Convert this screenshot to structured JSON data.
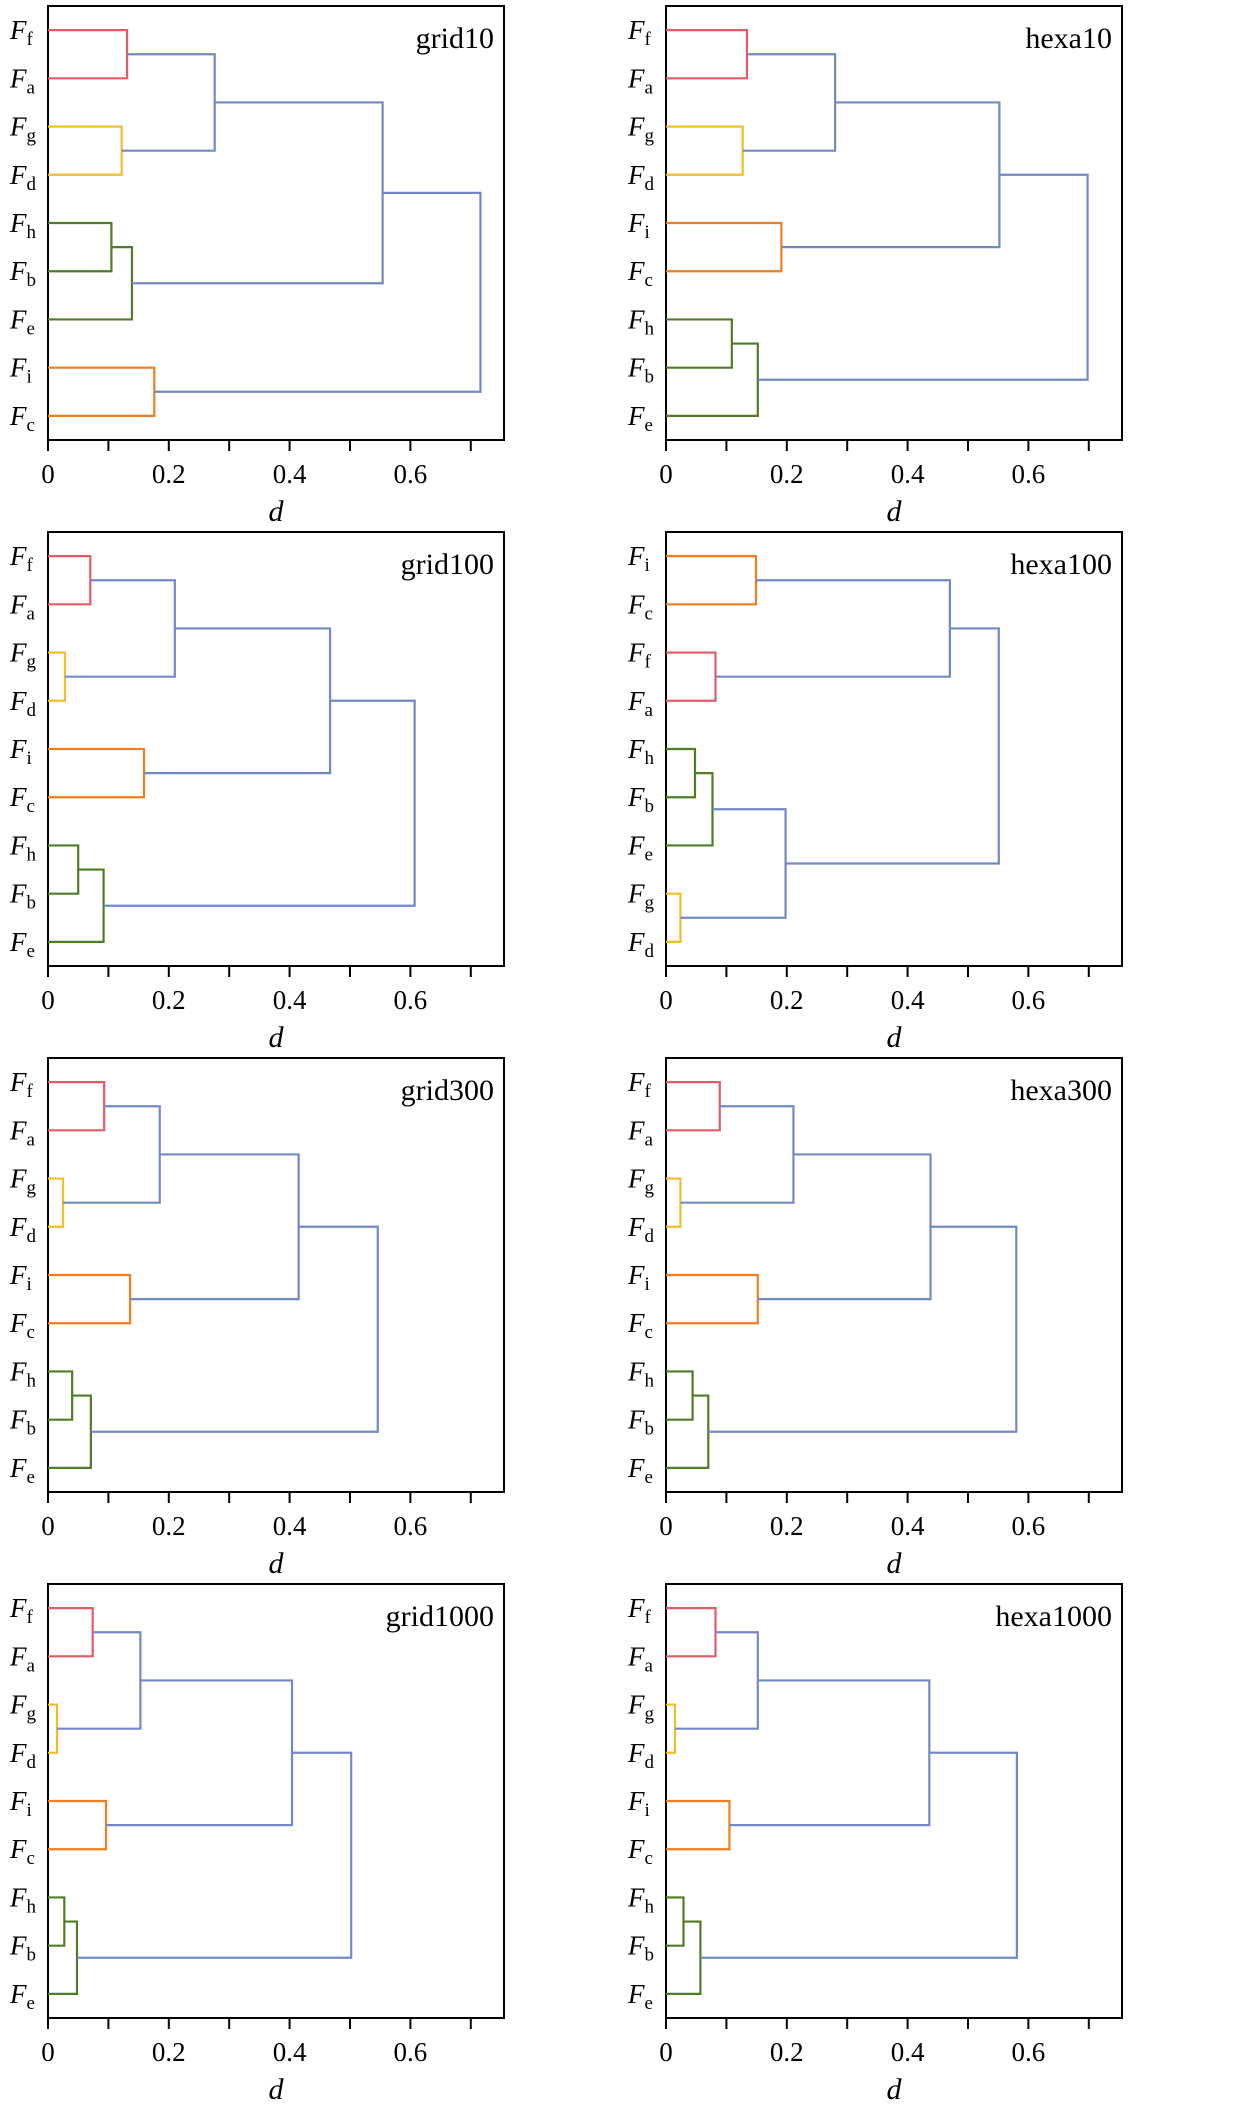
{
  "figure": {
    "description": "Eight agglomerative-clustering dendrograms comparing grid and hexa samplings at 10, 100, 300 and 1000 points",
    "panel_titles": [
      "grid10",
      "hexa10",
      "grid100",
      "hexa100",
      "grid300",
      "hexa300",
      "grid1000",
      "hexa1000"
    ]
  },
  "colors": {
    "red": "#e15c66",
    "yellow": "#f2bc2b",
    "orange": "#ee7e20",
    "green": "#4e7d26",
    "blue": "#7289c4",
    "axis": "#000000"
  },
  "axis": {
    "label": "d",
    "xmin": 0,
    "xmax": 0.755,
    "ticks": [
      {
        "v": 0.0,
        "t": "0"
      },
      {
        "v": 0.1,
        "t": ""
      },
      {
        "v": 0.2,
        "t": "0.2"
      },
      {
        "v": 0.3,
        "t": ""
      },
      {
        "v": 0.4,
        "t": "0.4"
      },
      {
        "v": 0.5,
        "t": ""
      },
      {
        "v": 0.6,
        "t": "0.6"
      },
      {
        "v": 0.7,
        "t": ""
      }
    ]
  },
  "leaf_prefix": "F",
  "chart_data": [
    {
      "type": "dendrogram",
      "title": "grid10",
      "xlabel": "d",
      "leaves": [
        "f",
        "a",
        "g",
        "d",
        "h",
        "b",
        "e",
        "i",
        "c"
      ],
      "merges": [
        {
          "a": "f",
          "b": "a",
          "d": 0.131,
          "color": "red"
        },
        {
          "a": "g",
          "b": "d",
          "d": 0.122,
          "color": "yellow"
        },
        {
          "a": "m0",
          "b": "m1",
          "d": 0.276,
          "color": "blue"
        },
        {
          "a": "h",
          "b": "b",
          "d": 0.105,
          "color": "green"
        },
        {
          "a": "m3",
          "b": "e",
          "d": 0.139,
          "color": "green"
        },
        {
          "a": "m2",
          "b": "m4",
          "d": 0.554,
          "color": "blue"
        },
        {
          "a": "i",
          "b": "c",
          "d": 0.176,
          "color": "orange"
        },
        {
          "a": "m5",
          "b": "m6",
          "d": 0.716,
          "color": "blue"
        }
      ]
    },
    {
      "type": "dendrogram",
      "title": "hexa10",
      "xlabel": "d",
      "leaves": [
        "f",
        "a",
        "g",
        "d",
        "i",
        "c",
        "h",
        "b",
        "e"
      ],
      "merges": [
        {
          "a": "f",
          "b": "a",
          "d": 0.134,
          "color": "red"
        },
        {
          "a": "g",
          "b": "d",
          "d": 0.127,
          "color": "yellow"
        },
        {
          "a": "m0",
          "b": "m1",
          "d": 0.28,
          "color": "blue"
        },
        {
          "a": "i",
          "b": "c",
          "d": 0.191,
          "color": "orange"
        },
        {
          "a": "m2",
          "b": "m3",
          "d": 0.552,
          "color": "blue"
        },
        {
          "a": "h",
          "b": "b",
          "d": 0.109,
          "color": "green"
        },
        {
          "a": "m5",
          "b": "e",
          "d": 0.152,
          "color": "green"
        },
        {
          "a": "m4",
          "b": "m6",
          "d": 0.698,
          "color": "blue"
        }
      ]
    },
    {
      "type": "dendrogram",
      "title": "grid100",
      "xlabel": "d",
      "leaves": [
        "f",
        "a",
        "g",
        "d",
        "i",
        "c",
        "h",
        "b",
        "e"
      ],
      "merges": [
        {
          "a": "f",
          "b": "a",
          "d": 0.07,
          "color": "red"
        },
        {
          "a": "g",
          "b": "d",
          "d": 0.028,
          "color": "yellow"
        },
        {
          "a": "m0",
          "b": "m1",
          "d": 0.21,
          "color": "blue"
        },
        {
          "a": "i",
          "b": "c",
          "d": 0.159,
          "color": "orange"
        },
        {
          "a": "m2",
          "b": "m3",
          "d": 0.467,
          "color": "blue"
        },
        {
          "a": "h",
          "b": "b",
          "d": 0.05,
          "color": "green"
        },
        {
          "a": "m5",
          "b": "e",
          "d": 0.092,
          "color": "green"
        },
        {
          "a": "m4",
          "b": "m6",
          "d": 0.607,
          "color": "blue"
        }
      ]
    },
    {
      "type": "dendrogram",
      "title": "hexa100",
      "xlabel": "d",
      "leaves": [
        "i",
        "c",
        "f",
        "a",
        "h",
        "b",
        "e",
        "g",
        "d"
      ],
      "merges": [
        {
          "a": "i",
          "b": "c",
          "d": 0.149,
          "color": "orange"
        },
        {
          "a": "f",
          "b": "a",
          "d": 0.082,
          "color": "red"
        },
        {
          "a": "m0",
          "b": "m1",
          "d": 0.47,
          "color": "blue"
        },
        {
          "a": "h",
          "b": "b",
          "d": 0.048,
          "color": "green"
        },
        {
          "a": "m3",
          "b": "e",
          "d": 0.077,
          "color": "green"
        },
        {
          "a": "g",
          "b": "d",
          "d": 0.024,
          "color": "yellow"
        },
        {
          "a": "m4",
          "b": "m5",
          "d": 0.198,
          "color": "blue"
        },
        {
          "a": "m2",
          "b": "m6",
          "d": 0.551,
          "color": "blue"
        }
      ]
    },
    {
      "type": "dendrogram",
      "title": "grid300",
      "xlabel": "d",
      "leaves": [
        "f",
        "a",
        "g",
        "d",
        "i",
        "c",
        "h",
        "b",
        "e"
      ],
      "merges": [
        {
          "a": "f",
          "b": "a",
          "d": 0.093,
          "color": "red"
        },
        {
          "a": "g",
          "b": "d",
          "d": 0.025,
          "color": "yellow"
        },
        {
          "a": "m0",
          "b": "m1",
          "d": 0.185,
          "color": "blue"
        },
        {
          "a": "i",
          "b": "c",
          "d": 0.136,
          "color": "orange"
        },
        {
          "a": "m2",
          "b": "m3",
          "d": 0.415,
          "color": "blue"
        },
        {
          "a": "h",
          "b": "b",
          "d": 0.04,
          "color": "green"
        },
        {
          "a": "m5",
          "b": "e",
          "d": 0.071,
          "color": "green"
        },
        {
          "a": "m4",
          "b": "m6",
          "d": 0.546,
          "color": "blue"
        }
      ]
    },
    {
      "type": "dendrogram",
      "title": "hexa300",
      "xlabel": "d",
      "leaves": [
        "f",
        "a",
        "g",
        "d",
        "i",
        "c",
        "h",
        "b",
        "e"
      ],
      "merges": [
        {
          "a": "f",
          "b": "a",
          "d": 0.089,
          "color": "red"
        },
        {
          "a": "g",
          "b": "d",
          "d": 0.024,
          "color": "yellow"
        },
        {
          "a": "m0",
          "b": "m1",
          "d": 0.211,
          "color": "blue"
        },
        {
          "a": "i",
          "b": "c",
          "d": 0.152,
          "color": "orange"
        },
        {
          "a": "m2",
          "b": "m3",
          "d": 0.438,
          "color": "blue"
        },
        {
          "a": "h",
          "b": "b",
          "d": 0.044,
          "color": "green"
        },
        {
          "a": "m5",
          "b": "e",
          "d": 0.07,
          "color": "green"
        },
        {
          "a": "m4",
          "b": "m6",
          "d": 0.58,
          "color": "blue"
        }
      ]
    },
    {
      "type": "dendrogram",
      "title": "grid1000",
      "xlabel": "d",
      "leaves": [
        "f",
        "a",
        "g",
        "d",
        "i",
        "c",
        "h",
        "b",
        "e"
      ],
      "merges": [
        {
          "a": "f",
          "b": "a",
          "d": 0.074,
          "color": "red"
        },
        {
          "a": "g",
          "b": "d",
          "d": 0.015,
          "color": "yellow"
        },
        {
          "a": "m0",
          "b": "m1",
          "d": 0.153,
          "color": "blue"
        },
        {
          "a": "i",
          "b": "c",
          "d": 0.096,
          "color": "orange"
        },
        {
          "a": "m2",
          "b": "m3",
          "d": 0.404,
          "color": "blue"
        },
        {
          "a": "h",
          "b": "b",
          "d": 0.027,
          "color": "green"
        },
        {
          "a": "m5",
          "b": "e",
          "d": 0.048,
          "color": "green"
        },
        {
          "a": "m4",
          "b": "m6",
          "d": 0.502,
          "color": "blue"
        }
      ]
    },
    {
      "type": "dendrogram",
      "title": "hexa1000",
      "xlabel": "d",
      "leaves": [
        "f",
        "a",
        "g",
        "d",
        "i",
        "c",
        "h",
        "b",
        "e"
      ],
      "merges": [
        {
          "a": "f",
          "b": "a",
          "d": 0.082,
          "color": "red"
        },
        {
          "a": "g",
          "b": "d",
          "d": 0.015,
          "color": "yellow"
        },
        {
          "a": "m0",
          "b": "m1",
          "d": 0.152,
          "color": "blue"
        },
        {
          "a": "i",
          "b": "c",
          "d": 0.105,
          "color": "orange"
        },
        {
          "a": "m2",
          "b": "m3",
          "d": 0.436,
          "color": "blue"
        },
        {
          "a": "h",
          "b": "b",
          "d": 0.029,
          "color": "green"
        },
        {
          "a": "m5",
          "b": "e",
          "d": 0.057,
          "color": "green"
        },
        {
          "a": "m4",
          "b": "m6",
          "d": 0.581,
          "color": "blue"
        }
      ]
    }
  ]
}
